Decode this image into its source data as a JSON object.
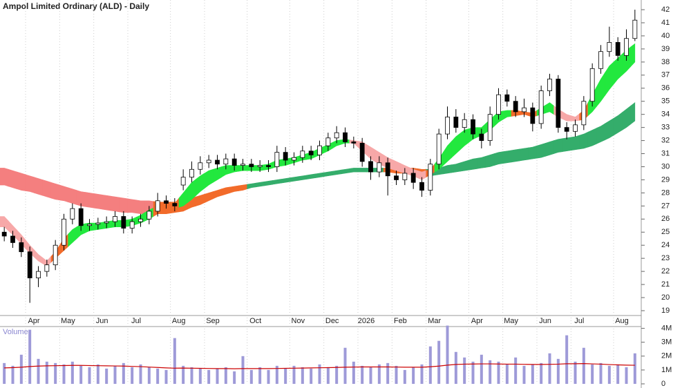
{
  "chart_data": {
    "type": "candlestick",
    "title": "Ampol Limited Ordinary (ALD) - Daily",
    "categories": [
      null,
      null,
      null,
      "Apr",
      null,
      null,
      null,
      "May",
      null,
      null,
      null,
      "Jun",
      null,
      null,
      null,
      "Jul",
      null,
      null,
      null,
      null,
      "Aug",
      null,
      null,
      null,
      "Sep",
      null,
      null,
      null,
      null,
      "Oct",
      null,
      null,
      null,
      null,
      "Nov",
      null,
      null,
      null,
      "Dec",
      null,
      null,
      null,
      "2026",
      null,
      null,
      null,
      "Feb",
      null,
      null,
      null,
      "Mar",
      null,
      null,
      null,
      null,
      "Apr",
      null,
      null,
      null,
      "May",
      null,
      null,
      null,
      "Jun",
      null,
      null,
      null,
      "Jul",
      null,
      null,
      null,
      null,
      "Aug",
      null,
      null
    ],
    "open": [
      25.0,
      24.7,
      24.2,
      23.5,
      21.5,
      22,
      22.5,
      24,
      26,
      26.8,
      25.5,
      25.6,
      25.7,
      25.8,
      26.2,
      25.3,
      25.8,
      26,
      26.6,
      27.4,
      27.2,
      28.6,
      29.2,
      29.8,
      30.3,
      30.5,
      30.2,
      30.6,
      30.1,
      30.2,
      30,
      30.1,
      30,
      31.1,
      30.5,
      30.7,
      31.2,
      30.9,
      31.6,
      32.2,
      32.6,
      31.9,
      31.8,
      30.4,
      29.6,
      30.3,
      29.3,
      29,
      29.5,
      28.8,
      28.2,
      30.2,
      32.5,
      33.8,
      33,
      33.6,
      32.5,
      32,
      34,
      35.5,
      35,
      34.2,
      34.5,
      33.3,
      35.8,
      36.7,
      33,
      32.7,
      33.2,
      35,
      37.5,
      38.8,
      39.5,
      38.5,
      39.8
    ],
    "high": [
      25.4,
      25.1,
      24.6,
      23.9,
      22.4,
      22.9,
      24.4,
      26.4,
      27.2,
      27.2,
      26.0,
      26.1,
      26.2,
      26.6,
      26.6,
      26.2,
      26.4,
      27.0,
      28.0,
      27.8,
      27.6,
      29.8,
      30.4,
      30.8,
      30.9,
      30.9,
      31.0,
      31.0,
      30.6,
      30.6,
      30.5,
      30.5,
      31.6,
      31.5,
      31.1,
      31.6,
      31.6,
      32.0,
      32.6,
      33.1,
      33.0,
      32.3,
      32.2,
      30.8,
      30.8,
      30.7,
      29.7,
      29.9,
      29.9,
      29.2,
      30.6,
      32.9,
      34.6,
      34.4,
      34.1,
      34.0,
      32.9,
      34.6,
      36.0,
      35.9,
      35.4,
      35.2,
      34.9,
      36.2,
      37.1,
      37.0,
      33.4,
      33.6,
      35.4,
      37.9,
      39.3,
      40.7,
      39.9,
      40.5,
      42.0
    ],
    "low": [
      24.3,
      23.8,
      23.1,
      19.6,
      20.8,
      21.6,
      22.1,
      23.6,
      25.6,
      25.1,
      25.1,
      25.2,
      25.3,
      25.4,
      24.9,
      24.9,
      25.4,
      25.6,
      26.2,
      26.8,
      26.6,
      28.2,
      28.8,
      29.4,
      29.9,
      29.8,
      29.8,
      29.7,
      29.7,
      29.6,
      29.6,
      29.6,
      29.6,
      30.1,
      30.1,
      30.3,
      30.5,
      30.5,
      31.2,
      31.8,
      31.5,
      31.4,
      30.0,
      29.0,
      29.2,
      27.8,
      28.6,
      28.6,
      28.3,
      27.7,
      27.8,
      29.8,
      32.1,
      32.6,
      32.6,
      32.1,
      31.4,
      31.6,
      33.6,
      34.6,
      33.8,
      33.8,
      32.7,
      32.9,
      35.4,
      32.6,
      32.1,
      32.3,
      32.8,
      34.6,
      37.1,
      38.4,
      38.1,
      38.1,
      39.6
    ],
    "close": [
      24.7,
      24.2,
      23.5,
      21.5,
      22,
      22.5,
      24,
      26,
      26.8,
      25.5,
      25.6,
      25.7,
      25.8,
      26.2,
      25.3,
      25.8,
      26,
      26.6,
      27.4,
      27.2,
      27,
      29.2,
      29.8,
      30.3,
      30.5,
      30.2,
      30.6,
      30.1,
      30.2,
      30,
      30.1,
      30,
      31.1,
      30.5,
      30.7,
      31.2,
      30.9,
      31.6,
      32.2,
      32.6,
      31.9,
      31.8,
      30.4,
      29.6,
      30.3,
      29.3,
      29,
      29.5,
      28.8,
      28.2,
      30.2,
      32.5,
      33.8,
      33,
      33.6,
      32.5,
      32,
      34,
      35.5,
      35,
      34.2,
      34.5,
      33.3,
      35.8,
      36.7,
      33,
      32.7,
      33.2,
      35,
      37.5,
      38.8,
      39.5,
      38.5,
      39.8,
      41.2
    ],
    "up_color": "#ffffff",
    "down_color": "#000000",
    "ylim": [
      18.63,
      42.74
    ],
    "yticks": [
      19,
      20,
      21,
      22,
      23,
      24,
      25,
      26,
      27,
      28,
      29,
      30,
      31,
      32,
      33,
      34,
      35,
      36,
      37,
      38,
      39,
      40,
      41,
      42
    ],
    "bands": [
      {
        "upper": [
          29.9,
          29.7,
          29.5,
          29.3,
          29.1,
          28.9,
          28.7,
          28.5,
          28.3,
          28.1,
          28.0,
          27.9,
          27.8,
          27.7,
          27.6,
          27.5,
          27.4,
          27.4,
          27.3,
          27.3,
          27.3,
          27.4,
          27.6,
          27.8,
          28.0,
          28.2,
          28.4,
          28.5,
          28.6,
          28.7,
          28.8,
          28.9,
          29.0,
          29.1,
          29.2,
          29.3,
          29.4,
          29.5,
          29.6,
          29.7,
          29.8,
          29.9,
          29.9,
          29.9,
          29.9,
          29.9,
          29.9,
          29.9,
          29.9,
          29.8,
          29.8,
          29.9,
          30.1,
          30.2,
          30.4,
          30.6,
          30.7,
          30.9,
          31.1,
          31.2,
          31.3,
          31.4,
          31.5,
          31.7,
          31.9,
          32.1,
          32.2,
          32.3,
          32.5,
          32.8,
          33.1,
          33.5,
          33.9,
          34.4,
          34.9
        ],
        "lower": [
          28.6,
          28.4,
          28.2,
          28.1,
          27.9,
          27.7,
          27.5,
          27.4,
          27.2,
          27.0,
          26.9,
          26.8,
          26.7,
          26.6,
          26.5,
          26.5,
          26.4,
          26.4,
          26.4,
          26.4,
          26.5,
          26.6,
          26.9,
          27.1,
          27.4,
          27.7,
          27.9,
          28.1,
          28.2,
          28.4,
          28.5,
          28.6,
          28.7,
          28.8,
          28.9,
          29.0,
          29.1,
          29.2,
          29.3,
          29.4,
          29.5,
          29.6,
          29.6,
          29.6,
          29.6,
          29.6,
          29.5,
          29.5,
          29.5,
          29.4,
          29.3,
          29.4,
          29.5,
          29.6,
          29.7,
          29.8,
          29.9,
          30.0,
          30.2,
          30.3,
          30.4,
          30.5,
          30.6,
          30.7,
          30.9,
          31.1,
          31.2,
          31.3,
          31.4,
          31.6,
          31.9,
          32.2,
          32.6,
          33.0,
          33.5
        ],
        "colors": [
          "#f47f7f",
          "#f47f7f",
          "#f47f7f",
          "#f47f7f",
          "#f47f7f",
          "#f47f7f",
          "#f47f7f",
          "#f47f7f",
          "#f47f7f",
          "#f47f7f",
          "#f47f7f",
          "#f47f7f",
          "#f47f7f",
          "#f47f7f",
          "#f47f7f",
          "#f47f7f",
          "#f47f7f",
          "#f47f7f",
          "#f26b2a",
          "#f26b2a",
          "#f26b2a",
          "#f26b2a",
          "#f26b2a",
          "#f26b2a",
          "#f26b2a",
          "#f26b2a",
          "#f26b2a",
          "#f26b2a",
          "#f26b2a",
          "#34ad6b",
          "#34ad6b",
          "#34ad6b",
          "#34ad6b",
          "#34ad6b",
          "#34ad6b",
          "#34ad6b",
          "#34ad6b",
          "#34ad6b",
          "#34ad6b",
          "#34ad6b",
          "#34ad6b",
          "#34ad6b",
          "#34ad6b",
          "#34ad6b",
          "#34ad6b",
          "#f26b2a",
          "#f26b2a",
          "#f26b2a",
          "#f26b2a",
          "#f26b2a",
          "#34ad6b",
          "#34ad6b",
          "#34ad6b",
          "#34ad6b",
          "#34ad6b",
          "#34ad6b",
          "#34ad6b",
          "#34ad6b",
          "#34ad6b",
          "#34ad6b",
          "#34ad6b",
          "#34ad6b",
          "#34ad6b",
          "#34ad6b",
          "#34ad6b",
          "#34ad6b",
          "#34ad6b",
          "#34ad6b",
          "#34ad6b",
          "#34ad6b",
          "#34ad6b",
          "#34ad6b",
          "#34ad6b",
          "#34ad6b",
          "#34ad6b"
        ]
      },
      {
        "upper": [
          26.2,
          25.5,
          24.8,
          24.0,
          23.3,
          22.8,
          23.5,
          24.5,
          25.2,
          25.6,
          25.7,
          25.7,
          25.8,
          25.9,
          25.9,
          26.0,
          26.3,
          26.7,
          27.0,
          27.1,
          27.2,
          28.0,
          28.8,
          29.3,
          29.7,
          29.9,
          30.1,
          30.1,
          30.1,
          30.1,
          30.1,
          30.2,
          30.5,
          30.6,
          30.7,
          30.9,
          31.1,
          31.4,
          31.7,
          32.0,
          32.1,
          32.0,
          31.9,
          31.5,
          31.1,
          30.7,
          30.4,
          30.1,
          29.8,
          29.6,
          29.8,
          30.6,
          31.6,
          32.3,
          32.8,
          33.0,
          33.0,
          33.6,
          34.2,
          34.3,
          34.3,
          34.2,
          34.1,
          34.5,
          34.9,
          34.4,
          34.0,
          33.8,
          34.3,
          35.5,
          36.7,
          37.7,
          38.3,
          38.9,
          39.4
        ],
        "lower": [
          25.4,
          24.8,
          24.1,
          23.4,
          22.8,
          22.4,
          23.0,
          23.6,
          24.2,
          24.8,
          25.1,
          25.2,
          25.3,
          25.4,
          25.4,
          25.5,
          25.7,
          26.0,
          26.4,
          26.6,
          26.8,
          27.0,
          27.5,
          28.1,
          28.6,
          29.0,
          29.4,
          29.6,
          29.7,
          29.7,
          29.7,
          29.8,
          30.0,
          30.1,
          30.3,
          30.5,
          30.6,
          30.9,
          31.2,
          31.6,
          31.8,
          31.8,
          31.2,
          30.6,
          30.2,
          29.9,
          29.7,
          29.5,
          29.3,
          29.0,
          29.4,
          29.8,
          30.4,
          31.0,
          31.6,
          32.1,
          32.4,
          32.8,
          33.4,
          33.8,
          33.9,
          34.0,
          33.8,
          34.0,
          34.2,
          33.8,
          33.5,
          33.5,
          33.6,
          34.2,
          35.0,
          35.9,
          36.7,
          37.3,
          38.0
        ],
        "colors": [
          "#f7a8a8",
          "#f7a8a8",
          "#f7a8a8",
          "#f7a8a8",
          "#f7a8a8",
          "#f7a8a8",
          "#f26b2a",
          "#f26b2a",
          "#22e83e",
          "#22e83e",
          "#22e83e",
          "#22e83e",
          "#22e83e",
          "#22e83e",
          "#22e83e",
          "#22e83e",
          "#22e83e",
          "#22e83e",
          "#f26b2a",
          "#f26b2a",
          "#f26b2a",
          "#22e83e",
          "#22e83e",
          "#22e83e",
          "#22e83e",
          "#22e83e",
          "#22e83e",
          "#22e83e",
          "#22e83e",
          "#22e83e",
          "#22e83e",
          "#22e83e",
          "#22e83e",
          "#22e83e",
          "#22e83e",
          "#22e83e",
          "#22e83e",
          "#22e83e",
          "#22e83e",
          "#22e83e",
          "#22e83e",
          "#f7a8a8",
          "#f7a8a8",
          "#f7a8a8",
          "#f7a8a8",
          "#f7a8a8",
          "#f7a8a8",
          "#f7a8a8",
          "#f7a8a8",
          "#f7a8a8",
          "#f26b2a",
          "#22e83e",
          "#22e83e",
          "#22e83e",
          "#22e83e",
          "#22e83e",
          "#22e83e",
          "#22e83e",
          "#22e83e",
          "#22e83e",
          "#f26b2a",
          "#f26b2a",
          "#f26b2a",
          "#22e83e",
          "#22e83e",
          "#f7a8a8",
          "#f7a8a8",
          "#f7a8a8",
          "#f26b2a",
          "#22e83e",
          "#22e83e",
          "#22e83e",
          "#22e83e",
          "#22e83e",
          "#22e83e"
        ]
      }
    ],
    "volume": {
      "label": "Volume",
      "color": "#9e9ad8",
      "average_color": "#cc0000",
      "values": [
        1500000,
        1300000,
        2100000,
        3900000,
        1800000,
        1600000,
        1500000,
        1400000,
        1600000,
        1300000,
        1200000,
        1400000,
        1100000,
        1300000,
        1500000,
        1200000,
        1400000,
        1200000,
        1100000,
        1000000,
        3300000,
        1300000,
        1200000,
        1100000,
        1000000,
        1100000,
        1200000,
        900000,
        2000000,
        1000000,
        1200000,
        1000000,
        1300000,
        1100000,
        1300000,
        1200000,
        1100000,
        1400000,
        1200000,
        1300000,
        2600000,
        1600000,
        1300000,
        1200000,
        1400000,
        1500000,
        1300000,
        1000000,
        1200000,
        1400000,
        2700000,
        3100000,
        4200000,
        2300000,
        1900000,
        1600000,
        2100000,
        1700000,
        1600000,
        1400000,
        1900000,
        1300000,
        1400000,
        1500000,
        2200000,
        1800000,
        3500000,
        1600000,
        2600000,
        1400000,
        1500000,
        1300000,
        1400000,
        1200000,
        2200000
      ],
      "average": [
        1150000,
        1170000,
        1200000,
        1250000,
        1280000,
        1300000,
        1310000,
        1320000,
        1330000,
        1330000,
        1320000,
        1310000,
        1300000,
        1290000,
        1280000,
        1260000,
        1240000,
        1210000,
        1180000,
        1150000,
        1130000,
        1140000,
        1130000,
        1120000,
        1110000,
        1100000,
        1100000,
        1090000,
        1100000,
        1100000,
        1100000,
        1100000,
        1110000,
        1120000,
        1130000,
        1140000,
        1150000,
        1160000,
        1170000,
        1180000,
        1200000,
        1210000,
        1220000,
        1220000,
        1220000,
        1220000,
        1210000,
        1200000,
        1200000,
        1200000,
        1230000,
        1280000,
        1350000,
        1400000,
        1420000,
        1430000,
        1440000,
        1440000,
        1430000,
        1420000,
        1420000,
        1410000,
        1400000,
        1400000,
        1410000,
        1420000,
        1450000,
        1450000,
        1460000,
        1440000,
        1420000,
        1390000,
        1370000,
        1350000,
        1340000
      ],
      "ylim": [
        0,
        4130000
      ],
      "yticks": [
        0,
        {
          "value": 1000000,
          "label": "1M"
        },
        {
          "value": 2000000,
          "label": "2M"
        },
        {
          "value": 3000000,
          "label": "3M"
        },
        {
          "value": 4000000,
          "label": "4M"
        }
      ]
    }
  }
}
